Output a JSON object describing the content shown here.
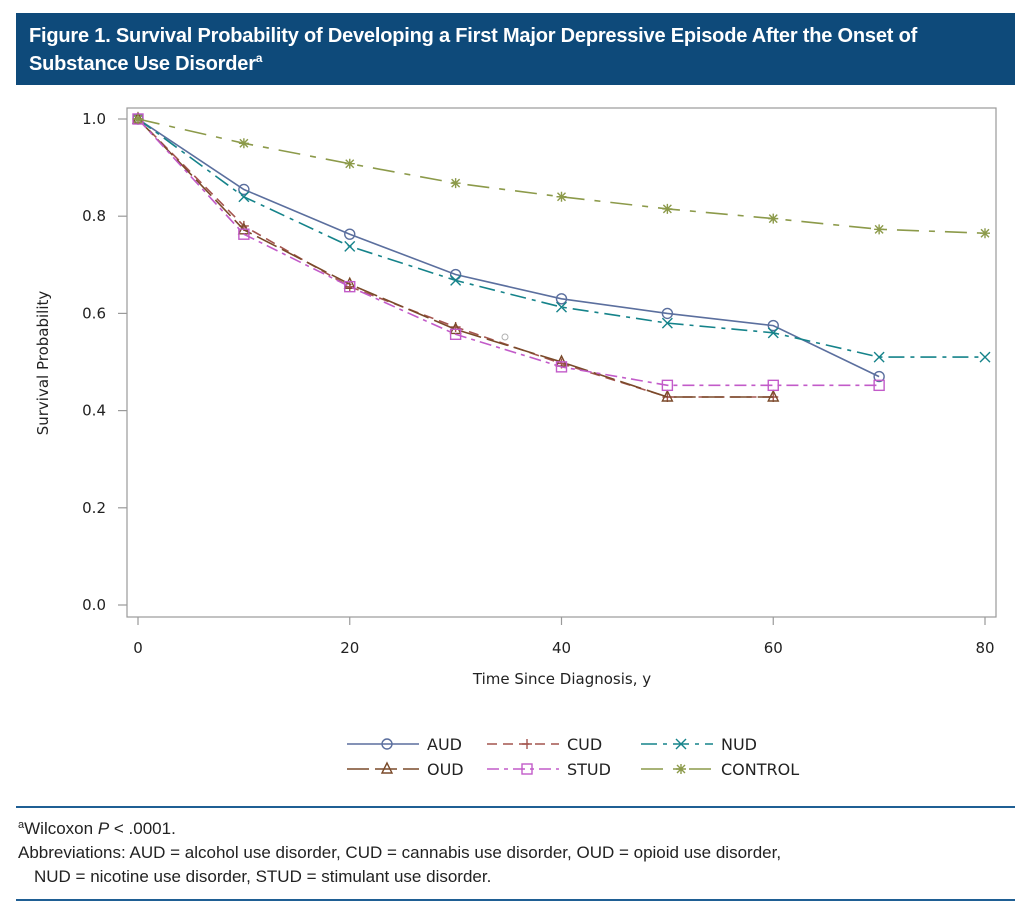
{
  "figure": {
    "title": "Figure 1. Survival Probability of Developing a First Major Depressive Episode After the Onset of Substance Use Disorder",
    "title_superscript": "a"
  },
  "chart_data": {
    "type": "line",
    "title": "Survival Probability of Developing a First Major Depressive Episode After the Onset of Substance Use Disorder",
    "xlabel": "Time Since Diagnosis, y",
    "ylabel": "Survival Probability",
    "xlim": [
      0,
      80
    ],
    "ylim": [
      0,
      1
    ],
    "x_ticks": [
      0,
      20,
      40,
      60,
      80
    ],
    "x_tick_labels": [
      "0",
      "20",
      "40",
      "60",
      "80"
    ],
    "y_ticks": [
      0,
      0.2,
      0.4,
      0.6,
      0.8,
      1.0
    ],
    "y_tick_labels": [
      "0.0",
      "0.2",
      "0.4",
      "0.6",
      "0.8",
      "1.0"
    ],
    "grid": false,
    "legend_position": "bottom",
    "series": [
      {
        "name": "AUD",
        "color": "#5b6f9e",
        "marker": "circle",
        "dash": "solid",
        "x": [
          0,
          10,
          20,
          30,
          40,
          50,
          60,
          70
        ],
        "y": [
          1.0,
          0.855,
          0.763,
          0.68,
          0.63,
          0.6,
          0.575,
          0.47
        ]
      },
      {
        "name": "CUD",
        "color": "#a4554f",
        "marker": "plus",
        "dash": "dash",
        "x": [
          0,
          10,
          20,
          30,
          40,
          50,
          60
        ],
        "y": [
          1.0,
          0.78,
          0.655,
          0.572,
          0.497,
          0.428,
          0.428
        ]
      },
      {
        "name": "NUD",
        "color": "#15838a",
        "marker": "x",
        "dash": "dashdot",
        "x": [
          0,
          10,
          20,
          30,
          40,
          50,
          60,
          70,
          80
        ],
        "y": [
          1.0,
          0.84,
          0.738,
          0.668,
          0.613,
          0.58,
          0.56,
          0.51,
          0.51
        ]
      },
      {
        "name": "OUD",
        "color": "#7a4a2a",
        "marker": "triangle",
        "dash": "longdash",
        "x": [
          0,
          10,
          20,
          30,
          40,
          50,
          60
        ],
        "y": [
          1.0,
          0.772,
          0.66,
          0.567,
          0.5,
          0.428,
          0.428
        ]
      },
      {
        "name": "STUD",
        "color": "#c25bc9",
        "marker": "square",
        "dash": "dashdotdot",
        "x": [
          0,
          10,
          20,
          30,
          40,
          50,
          60,
          70
        ],
        "y": [
          1.0,
          0.763,
          0.655,
          0.557,
          0.49,
          0.452,
          0.452,
          0.452
        ]
      },
      {
        "name": "CONTROL",
        "color": "#8c9a4a",
        "marker": "star",
        "dash": "dashdot-sparse",
        "x": [
          0,
          10,
          20,
          30,
          40,
          50,
          60,
          70,
          80
        ],
        "y": [
          1.0,
          0.95,
          0.908,
          0.868,
          0.84,
          0.815,
          0.795,
          0.773,
          0.765
        ]
      }
    ],
    "legend": [
      [
        "AUD",
        "CUD",
        "NUD"
      ],
      [
        "OUD",
        "STUD",
        "CONTROL"
      ]
    ]
  },
  "footnotes": {
    "superscript": "a",
    "wilcoxon_prefix": "Wilcoxon ",
    "wilcoxon_p": "P",
    "wilcoxon_suffix": " < .0001.",
    "abbrev_line1": "Abbreviations: AUD = alcohol use disorder, CUD = cannabis use disorder, OUD = opioid use disorder,",
    "abbrev_line2": "NUD = nicotine use disorder, STUD = stimulant use disorder."
  }
}
